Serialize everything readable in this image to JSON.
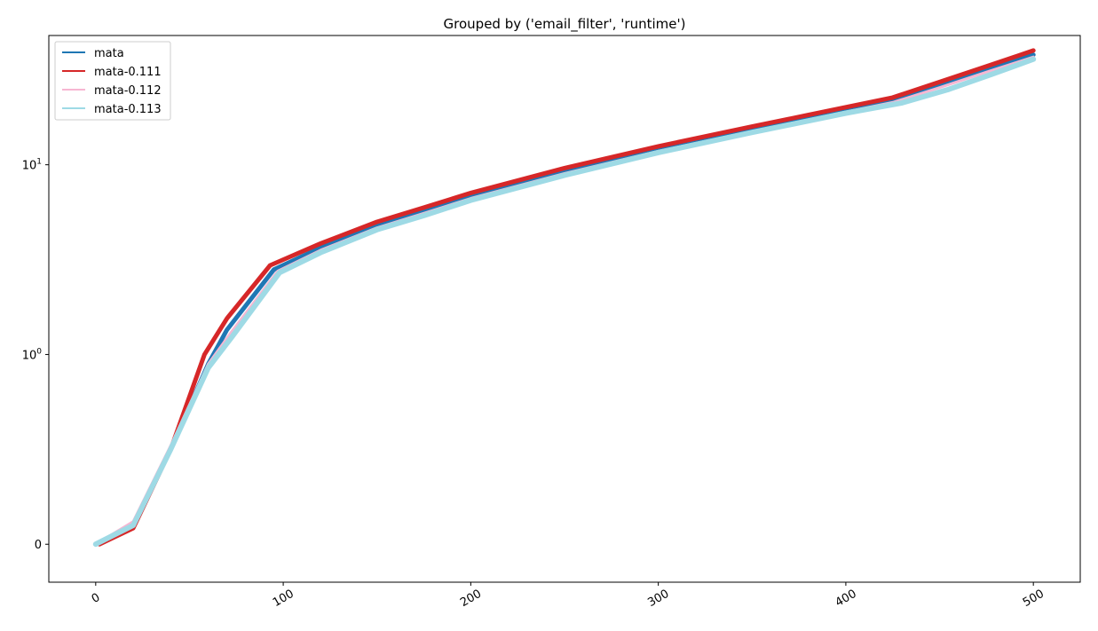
{
  "chart_data": {
    "type": "line",
    "title": "Grouped by ('email_filter', 'runtime')",
    "xlabel": "",
    "ylabel": "",
    "xlim": [
      -25,
      525
    ],
    "ylim": [
      -0.2,
      48
    ],
    "y_scale": "symlog",
    "x_ticks": [
      0,
      100,
      200,
      300,
      400,
      500
    ],
    "x_tick_labels": [
      "0",
      "100",
      "200",
      "300",
      "400",
      "500"
    ],
    "y_ticks": [
      {
        "value": 0,
        "base": "0",
        "exp": ""
      },
      {
        "value": 1,
        "base": "10",
        "exp": "0"
      },
      {
        "value": 10,
        "base": "10",
        "exp": "1"
      }
    ],
    "grid": false,
    "legend_position": "upper-left",
    "series": [
      {
        "name": "mata",
        "color": "#1f77b4",
        "width": 5,
        "x": [
          0,
          20,
          40,
          60,
          70,
          95,
          120,
          150,
          175,
          200,
          250,
          300,
          350,
          400,
          425,
          450,
          475,
          500
        ],
        "y": [
          0.0,
          0.1,
          0.5,
          0.95,
          1.35,
          2.8,
          3.65,
          4.8,
          5.7,
          6.8,
          9.2,
          12.0,
          15.3,
          19.3,
          21.7,
          26.0,
          31.5,
          38.0
        ]
      },
      {
        "name": "mata-0.111",
        "color": "#d62728",
        "width": 5,
        "x": [
          2,
          20,
          40,
          58,
          70,
          93,
          120,
          150,
          175,
          200,
          250,
          300,
          350,
          400,
          425,
          450,
          475,
          500
        ],
        "y": [
          0.0,
          0.085,
          0.5,
          1.0,
          1.55,
          2.95,
          3.85,
          5.0,
          5.95,
          7.1,
          9.6,
          12.5,
          15.9,
          20.1,
          22.6,
          27.3,
          33.0,
          40.0
        ]
      },
      {
        "name": "mata-0.112",
        "color": "#f7b6d2",
        "width": 3,
        "x": [
          0,
          20,
          40,
          60,
          72,
          97,
          120,
          150,
          175,
          200,
          250,
          300,
          350,
          400,
          425,
          450,
          475,
          500
        ],
        "y": [
          0.0,
          0.12,
          0.52,
          0.95,
          1.3,
          2.75,
          3.55,
          4.65,
          5.55,
          6.65,
          9.0,
          11.8,
          15.0,
          19.0,
          21.3,
          25.5,
          30.8,
          37.0
        ]
      },
      {
        "name": "mata-0.113",
        "color": "#9edae5",
        "width": 6,
        "x": [
          0,
          20,
          40,
          60,
          73,
          98,
          120,
          150,
          175,
          200,
          250,
          300,
          350,
          400,
          430,
          455,
          478,
          500
        ],
        "y": [
          0.0,
          0.1,
          0.5,
          0.93,
          1.25,
          2.7,
          3.45,
          4.55,
          5.4,
          6.5,
          8.8,
          11.6,
          14.8,
          18.7,
          21.2,
          25.0,
          30.0,
          36.0
        ]
      }
    ]
  }
}
